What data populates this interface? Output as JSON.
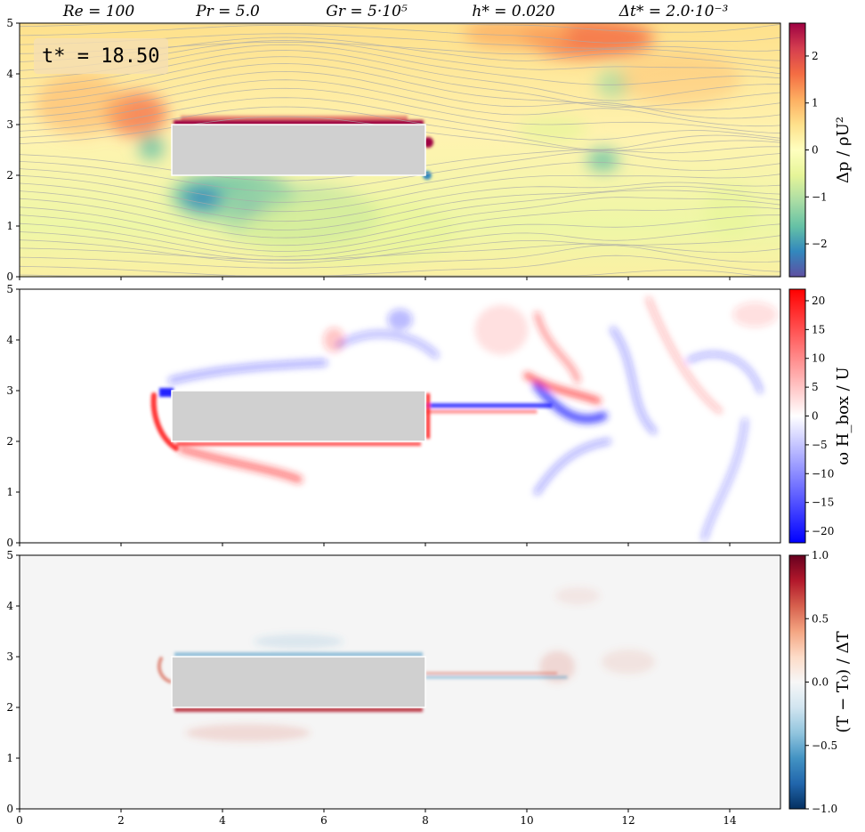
{
  "header": {
    "params": [
      {
        "id": "re",
        "text": "Re = 100"
      },
      {
        "id": "pr",
        "text": "Pr = 5.0"
      },
      {
        "id": "gr",
        "text": "Gr = 5·10⁵"
      },
      {
        "id": "h",
        "text": "h* = 0.020"
      },
      {
        "id": "dt",
        "text": "Δt* = 2.0·10⁻³"
      }
    ]
  },
  "time_label": "t* = 18.50",
  "colors": {
    "obstacle": "#d0d0d0",
    "obstacle_edge": "#ffffff",
    "streamline": "#a9a9a9",
    "spectral_stops": [
      "#5e4fa2",
      "#3288bd",
      "#66c2a5",
      "#abdda4",
      "#e6f598",
      "#ffffbf",
      "#fee08b",
      "#fdae61",
      "#f46d43",
      "#d53e4f",
      "#9e0142"
    ],
    "bwr_stops": [
      "#0000ff",
      "#ffffff",
      "#ff0000"
    ],
    "rdbu_stops": [
      "#053061",
      "#2166ac",
      "#4393c3",
      "#92c5de",
      "#d1e5f0",
      "#f7f7f7",
      "#fddbc7",
      "#f4a582",
      "#d6604d",
      "#b2182b",
      "#67001f"
    ]
  },
  "chart_data": [
    {
      "id": "pressure",
      "type": "heatmap",
      "title": "",
      "xlabel": "",
      "ylabel": "",
      "xlim": [
        0,
        15
      ],
      "ylim": [
        0,
        5
      ],
      "x_ticks": [
        0,
        2,
        4,
        6,
        8,
        10,
        12,
        14
      ],
      "y_ticks": [
        0,
        1,
        2,
        3,
        4,
        5
      ],
      "colorbar": {
        "label": "Δp / ρU²",
        "range": [
          -2.7,
          2.7
        ],
        "ticks": [
          -2,
          -1,
          0,
          1,
          2
        ],
        "cmap": "Spectral_r"
      },
      "obstacle": {
        "x": [
          3,
          8
        ],
        "y": [
          2,
          3
        ]
      },
      "streamlines": true
    },
    {
      "id": "vorticity",
      "type": "heatmap",
      "title": "",
      "xlabel": "",
      "ylabel": "",
      "xlim": [
        0,
        15
      ],
      "ylim": [
        0,
        5
      ],
      "x_ticks": [
        0,
        2,
        4,
        6,
        8,
        10,
        12,
        14
      ],
      "y_ticks": [
        0,
        1,
        2,
        3,
        4,
        5
      ],
      "colorbar": {
        "label": "ω H_box / U",
        "range": [
          -22,
          22
        ],
        "ticks": [
          -20,
          -15,
          -10,
          -5,
          0,
          5,
          10,
          15,
          20
        ],
        "cmap": "bwr"
      },
      "obstacle": {
        "x": [
          3,
          8
        ],
        "y": [
          2,
          3
        ]
      }
    },
    {
      "id": "temperature",
      "type": "heatmap",
      "title": "",
      "xlabel": "",
      "ylabel": "",
      "xlim": [
        0,
        15
      ],
      "ylim": [
        0,
        5
      ],
      "x_ticks": [
        0,
        2,
        4,
        6,
        8,
        10,
        12,
        14
      ],
      "x_tick_labels": [
        "0",
        "2",
        "4",
        "6",
        "8",
        "10",
        "12",
        "14"
      ],
      "y_ticks": [
        0,
        1,
        2,
        3,
        4,
        5
      ],
      "colorbar": {
        "label": "(T − T₀) / ΔT",
        "range": [
          -1,
          1
        ],
        "ticks": [
          -1.0,
          -0.5,
          0.0,
          0.5,
          1.0
        ],
        "tick_labels": [
          "−1.0",
          "−0.5",
          "0.0",
          "0.5",
          "1.0"
        ],
        "cmap": "RdBu_r"
      },
      "obstacle": {
        "x": [
          3,
          8
        ],
        "y": [
          2,
          3
        ]
      }
    }
  ]
}
